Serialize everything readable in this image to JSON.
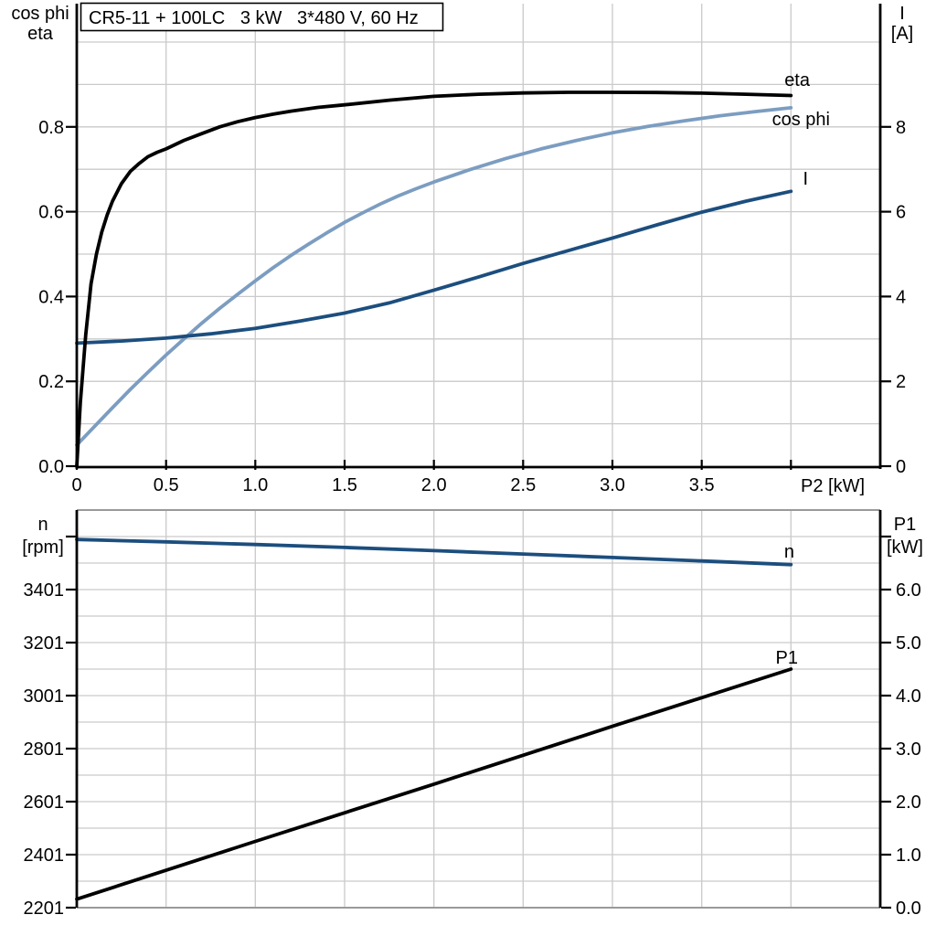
{
  "title": "CR5-11 + 100LC   3 kW   3*480 V, 60 Hz",
  "top_chart": {
    "y_axis_left_title_line1": "cos phi",
    "y_axis_left_title_line2": "eta",
    "y_axis_right_title_line1": "I",
    "y_axis_right_title_line2": "[A]",
    "x_axis_title": "P2 [kW]",
    "curve_labels": {
      "eta": "eta",
      "cos_phi": "cos phi",
      "current": "I"
    }
  },
  "bottom_chart": {
    "y_axis_left_title_line1": "n",
    "y_axis_left_title_line2": "[rpm]",
    "y_axis_right_title_line1": "P1",
    "y_axis_right_title_line2": "[kW]",
    "curve_labels": {
      "speed": "n",
      "power": "P1"
    }
  },
  "colors": {
    "black": "#000000",
    "light_blue": "#7C9DC1",
    "dark_blue": "#1C4E7E",
    "grid": "#CACACA",
    "frame": "#999999"
  },
  "chart_data": [
    {
      "type": "line",
      "title": "CR5-11 + 100LC   3 kW   3*480 V, 60 Hz",
      "xlabel": "P2 [kW]",
      "ylabel_left": "cos phi / eta",
      "ylabel_right": "I [A]",
      "xlim": [
        0,
        4.5
      ],
      "ylim_left": [
        0,
        1.0
      ],
      "ylim_right": [
        0,
        10
      ],
      "grid": {
        "x_step": 0.5,
        "y_step": 0.1
      },
      "legend_position": "inline-right",
      "x_tick_values": [
        0,
        0.5,
        1.0,
        1.5,
        2.0,
        2.5,
        3.0,
        3.5,
        4.0
      ],
      "x_tick_labels": [
        "0",
        "0.5",
        "1.0",
        "1.5",
        "2.0",
        "2.5",
        "3.0",
        "3.5",
        ""
      ],
      "y_left_tick_values": [
        0,
        0.2,
        0.4,
        0.6,
        0.8
      ],
      "y_left_tick_labels": [
        "0.0",
        "0.2",
        "0.4",
        "0.6",
        "0.8"
      ],
      "y_right_tick_values": [
        0,
        2,
        4,
        6,
        8
      ],
      "y_right_tick_labels": [
        "0",
        "2",
        "4",
        "6",
        "8"
      ],
      "series": [
        {
          "name": "cos phi",
          "axis": "left",
          "color_key": "light_blue",
          "points": [
            [
              0,
              0.05
            ],
            [
              0.1,
              0.094
            ],
            [
              0.2,
              0.138
            ],
            [
              0.3,
              0.181
            ],
            [
              0.4,
              0.222
            ],
            [
              0.5,
              0.262
            ],
            [
              0.6,
              0.3
            ],
            [
              0.7,
              0.337
            ],
            [
              0.8,
              0.372
            ],
            [
              0.9,
              0.405
            ],
            [
              1.0,
              0.437
            ],
            [
              1.1,
              0.468
            ],
            [
              1.2,
              0.497
            ],
            [
              1.3,
              0.524
            ],
            [
              1.4,
              0.55
            ],
            [
              1.5,
              0.575
            ],
            [
              1.6,
              0.597
            ],
            [
              1.7,
              0.618
            ],
            [
              1.8,
              0.637
            ],
            [
              1.9,
              0.654
            ],
            [
              2.0,
              0.67
            ],
            [
              2.2,
              0.699
            ],
            [
              2.4,
              0.725
            ],
            [
              2.6,
              0.748
            ],
            [
              2.8,
              0.768
            ],
            [
              3.0,
              0.786
            ],
            [
              3.2,
              0.801
            ],
            [
              3.4,
              0.814
            ],
            [
              3.6,
              0.826
            ],
            [
              3.8,
              0.836
            ],
            [
              4.0,
              0.845
            ]
          ]
        },
        {
          "name": "I",
          "axis": "right",
          "color_key": "dark_blue",
          "points": [
            [
              0,
              2.9
            ],
            [
              0.25,
              2.95
            ],
            [
              0.5,
              3.02
            ],
            [
              0.75,
              3.12
            ],
            [
              1.0,
              3.25
            ],
            [
              1.25,
              3.42
            ],
            [
              1.5,
              3.61
            ],
            [
              1.75,
              3.85
            ],
            [
              2.0,
              4.15
            ],
            [
              2.25,
              4.46
            ],
            [
              2.5,
              4.78
            ],
            [
              2.75,
              5.08
            ],
            [
              3.0,
              5.38
            ],
            [
              3.25,
              5.69
            ],
            [
              3.5,
              5.99
            ],
            [
              3.75,
              6.25
            ],
            [
              4.0,
              6.48
            ]
          ]
        },
        {
          "name": "eta",
          "axis": "left",
          "color_key": "black",
          "points": [
            [
              0,
              0
            ],
            [
              0.02,
              0.15
            ],
            [
              0.05,
              0.31
            ],
            [
              0.08,
              0.43
            ],
            [
              0.11,
              0.5
            ],
            [
              0.14,
              0.552
            ],
            [
              0.17,
              0.592
            ],
            [
              0.2,
              0.625
            ],
            [
              0.25,
              0.666
            ],
            [
              0.3,
              0.695
            ],
            [
              0.35,
              0.714
            ],
            [
              0.4,
              0.73
            ],
            [
              0.45,
              0.74
            ],
            [
              0.5,
              0.748
            ],
            [
              0.6,
              0.768
            ],
            [
              0.7,
              0.784
            ],
            [
              0.8,
              0.8
            ],
            [
              0.9,
              0.812
            ],
            [
              1.0,
              0.822
            ],
            [
              1.1,
              0.83
            ],
            [
              1.2,
              0.837
            ],
            [
              1.35,
              0.846
            ],
            [
              1.5,
              0.852
            ],
            [
              1.75,
              0.863
            ],
            [
              2.0,
              0.872
            ],
            [
              2.25,
              0.877
            ],
            [
              2.5,
              0.88
            ],
            [
              2.75,
              0.8815
            ],
            [
              3.0,
              0.8815
            ],
            [
              3.25,
              0.881
            ],
            [
              3.5,
              0.8795
            ],
            [
              3.75,
              0.877
            ],
            [
              4.0,
              0.874
            ]
          ]
        }
      ]
    },
    {
      "type": "line",
      "title": "",
      "xlabel": "",
      "ylabel_left": "n [rpm]",
      "ylabel_right": "P1 [kW]",
      "xlim": [
        0,
        4.5
      ],
      "ylim_left": [
        2201,
        3701
      ],
      "ylim_right": [
        0,
        7.5
      ],
      "grid": {
        "x_step": 0.5,
        "y_left_step": 100
      },
      "legend_position": "inline-right",
      "y_left_tick_values": [
        2201,
        2401,
        2601,
        2801,
        3001,
        3201,
        3401,
        3601
      ],
      "y_left_tick_labels": [
        "2201",
        "2401",
        "2601",
        "2801",
        "3001",
        "3201",
        "3401",
        ""
      ],
      "y_right_tick_values": [
        0,
        1,
        2,
        3,
        4,
        5,
        6,
        7
      ],
      "y_right_tick_labels": [
        "0.0",
        "1.0",
        "2.0",
        "3.0",
        "4.0",
        "5.0",
        "6.0",
        ""
      ],
      "series": [
        {
          "name": "n",
          "axis": "left",
          "color_key": "dark_blue",
          "points": [
            [
              0,
              3590
            ],
            [
              0.5,
              3581
            ],
            [
              1.0,
              3571
            ],
            [
              1.5,
              3560
            ],
            [
              2.0,
              3548
            ],
            [
              2.5,
              3535
            ],
            [
              3.0,
              3522
            ],
            [
              3.5,
              3509
            ],
            [
              4.0,
              3495
            ]
          ]
        },
        {
          "name": "P1",
          "axis": "right",
          "color_key": "black",
          "points": [
            [
              0,
              0.16
            ],
            [
              1.0,
              1.25
            ],
            [
              2.0,
              2.33
            ],
            [
              3.0,
              3.42
            ],
            [
              4.0,
              4.5
            ]
          ]
        }
      ]
    }
  ]
}
